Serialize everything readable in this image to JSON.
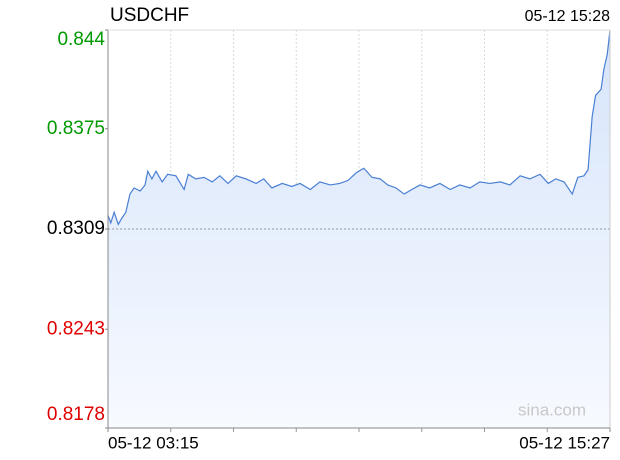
{
  "chart_data": {
    "type": "area",
    "title": "USDCHF",
    "subtitle": "05-12 15:28",
    "watermark": "sina.com",
    "x": [
      0,
      4,
      9,
      15,
      20,
      26,
      32,
      38,
      47,
      54,
      58,
      64,
      70,
      79,
      87,
      99,
      111,
      117,
      128,
      140,
      152,
      163,
      175,
      187,
      201,
      216,
      227,
      239,
      254,
      268,
      280,
      295,
      309,
      324,
      338,
      350,
      362,
      373,
      385,
      397,
      408,
      420,
      432,
      443,
      455,
      469,
      484,
      499,
      513,
      528,
      542,
      557,
      572,
      586,
      601,
      615,
      630,
      642,
      653,
      665,
      677,
      685,
      694,
      700,
      706,
      711,
      719,
      723,
      728,
      732
    ],
    "values": [
      0.8318,
      0.8313,
      0.832,
      0.8312,
      0.8316,
      0.832,
      0.8332,
      0.8336,
      0.8334,
      0.8338,
      0.8347,
      0.8342,
      0.8347,
      0.834,
      0.8345,
      0.8344,
      0.8335,
      0.8345,
      0.8342,
      0.8343,
      0.834,
      0.8344,
      0.8339,
      0.8344,
      0.8342,
      0.8339,
      0.8342,
      0.8336,
      0.8339,
      0.8337,
      0.8339,
      0.8335,
      0.834,
      0.8338,
      0.8339,
      0.8341,
      0.8346,
      0.8349,
      0.8343,
      0.8342,
      0.8338,
      0.8336,
      0.8332,
      0.8335,
      0.8338,
      0.8336,
      0.8339,
      0.8335,
      0.8338,
      0.8336,
      0.834,
      0.8339,
      0.834,
      0.8338,
      0.8344,
      0.8342,
      0.8345,
      0.8339,
      0.8342,
      0.834,
      0.8332,
      0.8343,
      0.8344,
      0.8348,
      0.8383,
      0.8397,
      0.8401,
      0.8414,
      0.8424,
      0.844
    ],
    "color": "#4a7fd4",
    "xlim": [
      0,
      732
    ],
    "xticks": [
      {
        "value": 0,
        "label": "05-12 03:15"
      },
      {
        "value": 732,
        "label": "05-12 15:27"
      }
    ],
    "ylim": [
      0.8178,
      0.844
    ],
    "yticks": [
      0.844,
      0.8375,
      0.8309,
      0.8243,
      0.8178
    ],
    "prev_close": 0.8309,
    "up_color": "#009900",
    "down_color": "#e00000",
    "flat_color": "#000000",
    "grid": true
  }
}
